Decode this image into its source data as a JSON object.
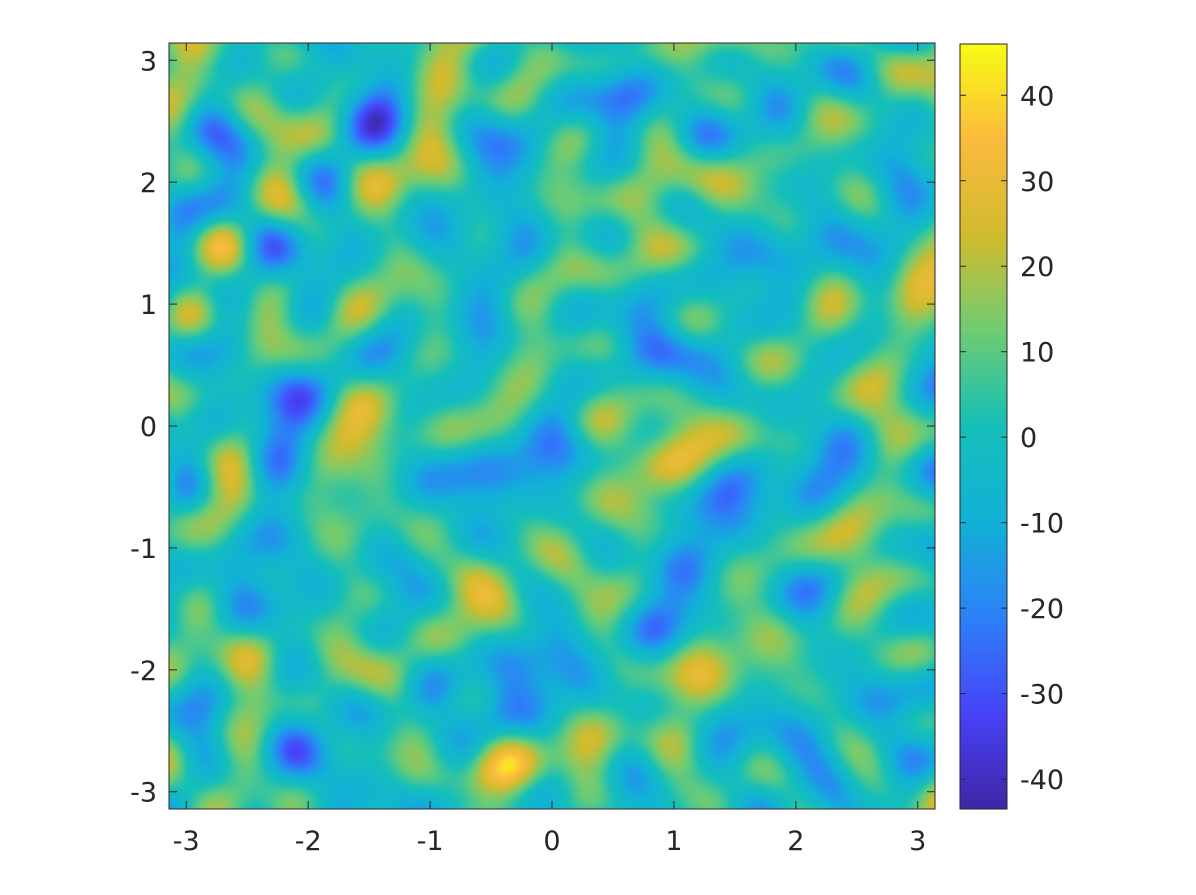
{
  "chart_data": {
    "type": "heatmap",
    "title": "",
    "xlabel": "",
    "ylabel": "",
    "xlim": [
      -3.1416,
      3.1416
    ],
    "ylim": [
      -3.1416,
      3.1416
    ],
    "x_ticks": [
      -3,
      -2,
      -1,
      0,
      1,
      2,
      3
    ],
    "y_ticks": [
      -3,
      -2,
      -1,
      0,
      1,
      2,
      3
    ],
    "x_tick_labels": [
      "-3",
      "-2",
      "-1",
      "0",
      "1",
      "2",
      "3"
    ],
    "y_tick_labels": [
      "-3",
      "-2",
      "-1",
      "0",
      "1",
      "2",
      "3"
    ],
    "z_description": "random smooth field (speckle noise) with values spread across the colorbar range",
    "colormap": "parula",
    "colormap_stops": [
      "#3e26a8",
      "#4743f8",
      "#2d81f8",
      "#12b1d7",
      "#15bfb9",
      "#6fcc73",
      "#d1bb2e",
      "#fbbb3e",
      "#f9fb15"
    ],
    "colorbar": {
      "range": [
        -43.5,
        46
      ],
      "ticks": [
        40,
        30,
        20,
        10,
        0,
        -10,
        -20,
        -30,
        -40
      ],
      "tick_labels": [
        "40",
        "30",
        "20",
        "10",
        "0",
        "-10",
        "-20",
        "-30",
        "-40"
      ]
    },
    "grid": false,
    "legend": "none"
  }
}
